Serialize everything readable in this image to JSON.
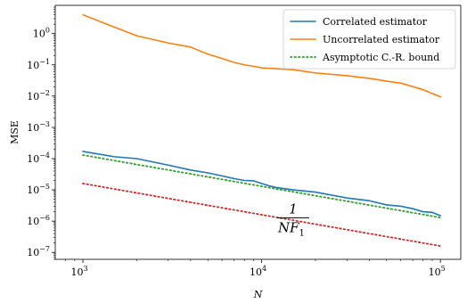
{
  "chart_data": {
    "type": "line",
    "xscale": "log",
    "yscale": "log",
    "xlabel": "N",
    "ylabel": "MSE",
    "xlim": [
      700,
      130000
    ],
    "ylim": [
      6e-08,
      8
    ],
    "xticks": [
      {
        "value": 1000,
        "base": "10",
        "exp": "3"
      },
      {
        "value": 10000,
        "base": "10",
        "exp": "4"
      },
      {
        "value": 100000,
        "base": "10",
        "exp": "5"
      }
    ],
    "yticks": [
      {
        "value": 1e-07,
        "base": "10",
        "exp": "−7"
      },
      {
        "value": 1e-06,
        "base": "10",
        "exp": "−6"
      },
      {
        "value": 1e-05,
        "base": "10",
        "exp": "−5"
      },
      {
        "value": 0.0001,
        "base": "10",
        "exp": "−4"
      },
      {
        "value": 0.001,
        "base": "10",
        "exp": "−3"
      },
      {
        "value": 0.01,
        "base": "10",
        "exp": "−2"
      },
      {
        "value": 0.1,
        "base": "10",
        "exp": "−1"
      },
      {
        "value": 1,
        "base": "10",
        "exp": "0"
      }
    ],
    "legend_position": "top-right",
    "series": [
      {
        "name": "Correlated estimator",
        "color": "#1f77b4",
        "style": "solid",
        "x": [
          1000,
          1500,
          2000,
          3000,
          4000,
          5000,
          6000,
          7000,
          8000,
          9000,
          10000,
          11000,
          12000,
          15000,
          20000,
          30000,
          40000,
          50000,
          60000,
          70000,
          80000,
          90000,
          100000
        ],
        "y": [
          0.00017,
          0.000115,
          0.0001,
          6.2e-05,
          4.3e-05,
          3.5e-05,
          2.8e-05,
          2.3e-05,
          2e-05,
          1.95e-05,
          1.6e-05,
          1.35e-05,
          1.2e-05,
          1e-05,
          8.5e-06,
          5.5e-06,
          4.5e-06,
          3.3e-06,
          3e-06,
          2.5e-06,
          2e-06,
          1.9e-06,
          1.5e-06
        ]
      },
      {
        "name": "Uncorrelated estimator",
        "color": "#ff7f0e",
        "style": "solid",
        "x": [
          1000,
          1500,
          2000,
          3000,
          4000,
          5000,
          6000,
          7000,
          8000,
          9000,
          10000,
          15000,
          20000,
          30000,
          40000,
          50000,
          60000,
          70000,
          80000,
          90000,
          100000
        ],
        "y": [
          4.0,
          1.6,
          0.85,
          0.5,
          0.37,
          0.22,
          0.16,
          0.12,
          0.1,
          0.09,
          0.08,
          0.07,
          0.055,
          0.045,
          0.037,
          0.03,
          0.026,
          0.02,
          0.016,
          0.012,
          0.0095
        ]
      },
      {
        "name": "Asymptotic C.-R. bound",
        "color": "#2ca02c",
        "style": "dotted",
        "x": [
          1000,
          100000
        ],
        "y": [
          0.00013,
          1.3e-06
        ]
      },
      {
        "color": "#d62728",
        "style": "dotted",
        "x": [
          1000,
          100000
        ],
        "y": [
          1.6e-05,
          1.6e-07
        ]
      }
    ],
    "annotation": {
      "numerator": "1",
      "denominator_main": "NF",
      "denominator_sub": "1",
      "x": 15000,
      "y": 1.2e-06
    }
  }
}
